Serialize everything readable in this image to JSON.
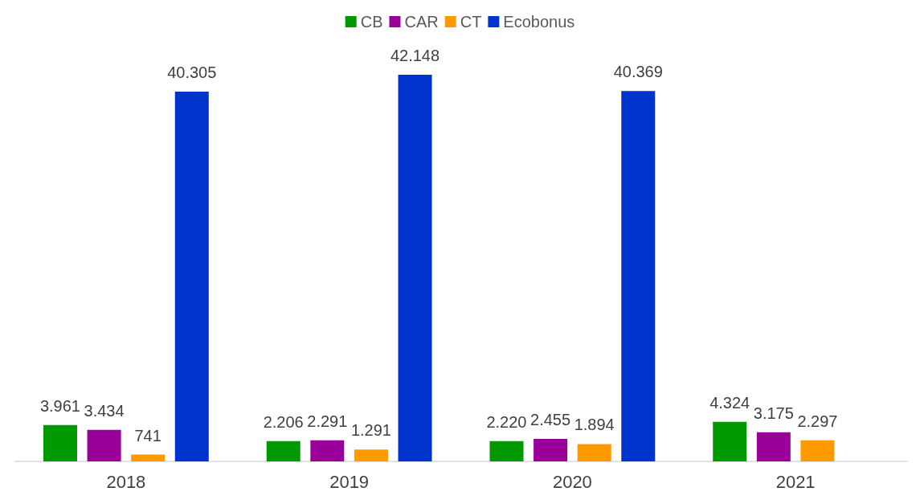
{
  "chart_data": {
    "type": "bar",
    "categories": [
      "2018",
      "2019",
      "2020",
      "2021"
    ],
    "series": [
      {
        "name": "CB",
        "color": "#009900",
        "values": [
          3961,
          2206,
          2220,
          4324
        ],
        "value_labels": [
          "3.961",
          "2.206",
          "2.220",
          "4.324"
        ]
      },
      {
        "name": "CAR",
        "color": "#990099",
        "values": [
          3434,
          2291,
          2455,
          3175
        ],
        "value_labels": [
          "3.434",
          "2.291",
          "2.455",
          "3.175"
        ]
      },
      {
        "name": "CT",
        "color": "#ff9900",
        "values": [
          741,
          1291,
          1894,
          2297
        ],
        "value_labels": [
          "741",
          "1.291",
          "1.894",
          "2.297"
        ]
      },
      {
        "name": "Ecobonus",
        "color": "#0033cc",
        "values": [
          40305,
          42148,
          40369,
          null
        ],
        "value_labels": [
          "40.305",
          "42.148",
          "40.369",
          null
        ]
      }
    ],
    "legend": "top"
  }
}
